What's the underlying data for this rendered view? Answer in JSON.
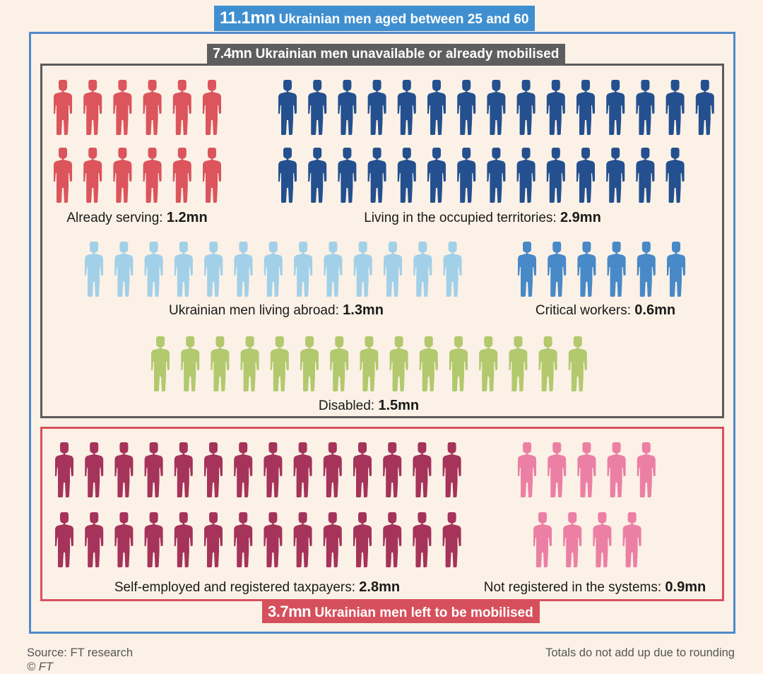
{
  "headers": {
    "total": {
      "value": "11.1mn",
      "label": "Ukrainian men aged between 25 and 60"
    },
    "unavailable": {
      "value": "7.4mn",
      "label": "Ukrainian men unavailable or already mobilised"
    },
    "left": {
      "value": "3.7mn",
      "label": "Ukrainian men left to be mobilised"
    }
  },
  "footer": {
    "source": "Source: FT research",
    "copyright": "© FT",
    "note": "Totals do not add up due to rounding"
  },
  "chart_data": {
    "type": "pictogram",
    "unit_note": "each figure ≈ 0.1mn men",
    "groups": [
      {
        "key": "serving",
        "label": "Already serving:",
        "value": "1.2mn",
        "count": 12,
        "color": "#dc545c",
        "section": "unavailable"
      },
      {
        "key": "occupied",
        "label": "Living in the occupied territories:",
        "value": "2.9mn",
        "count": 29,
        "color": "#24508f",
        "section": "unavailable"
      },
      {
        "key": "abroad",
        "label": "Ukrainian men living abroad:",
        "value": "1.3mn",
        "count": 13,
        "color": "#a2d0e8",
        "section": "unavailable"
      },
      {
        "key": "critical",
        "label": "Critical workers:",
        "value": "0.6mn",
        "count": 6,
        "color": "#4889c8",
        "section": "unavailable"
      },
      {
        "key": "disabled",
        "label": "Disabled:",
        "value": "1.5mn",
        "count": 15,
        "color": "#b2c96e",
        "section": "unavailable"
      },
      {
        "key": "selfemployed",
        "label": "Self-employed and registered taxpayers:",
        "value": "2.8mn",
        "count": 28,
        "color": "#a5335a",
        "section": "left"
      },
      {
        "key": "notregistered",
        "label": "Not registered in the systems:",
        "value": "0.9mn",
        "count": 9,
        "color": "#ec7fa4",
        "section": "left"
      }
    ]
  }
}
